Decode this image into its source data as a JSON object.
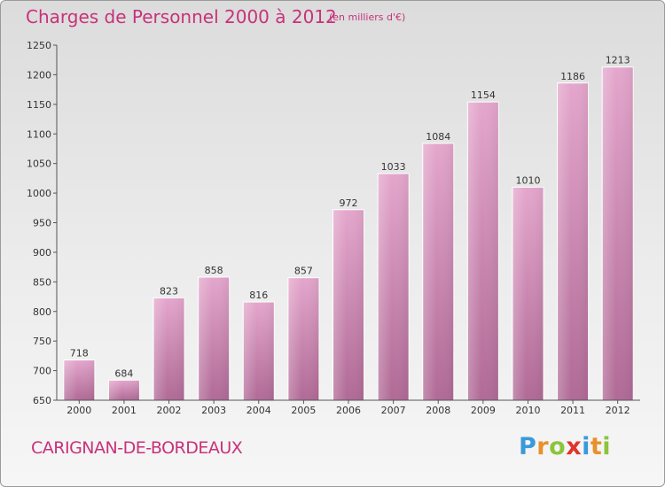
{
  "title": "Charges de Personnel 2000 à 2012",
  "subtitle": "(en milliers d'€)",
  "commune": "CARIGNAN-DE-BORDEAUX",
  "logo": {
    "letters": [
      "P",
      "r",
      "o",
      "x",
      "i",
      "t",
      "i"
    ],
    "colors": [
      "#3a9ad9",
      "#e8902a",
      "#8cc43c",
      "#e0342c",
      "#3a9ad9",
      "#e8902a",
      "#8cc43c"
    ]
  },
  "colors": {
    "accent": "#c8327a",
    "bar_top": "#e4a6cc",
    "bar_bottom": "#b06a96"
  },
  "chart_data": {
    "type": "bar",
    "title": "Charges de Personnel 2000 à 2012",
    "subtitle": "(en milliers d'€)",
    "xlabel": "",
    "ylabel": "",
    "categories": [
      "2000",
      "2001",
      "2002",
      "2003",
      "2004",
      "2005",
      "2006",
      "2007",
      "2008",
      "2009",
      "2010",
      "2011",
      "2012"
    ],
    "values": [
      718,
      684,
      823,
      858,
      816,
      857,
      972,
      1033,
      1084,
      1154,
      1010,
      1186,
      1213
    ],
    "ylim": [
      650,
      1250
    ],
    "yticks": [
      650,
      700,
      750,
      800,
      850,
      900,
      950,
      1000,
      1050,
      1100,
      1150,
      1200,
      1250
    ],
    "grid": false,
    "data_labels": true
  }
}
